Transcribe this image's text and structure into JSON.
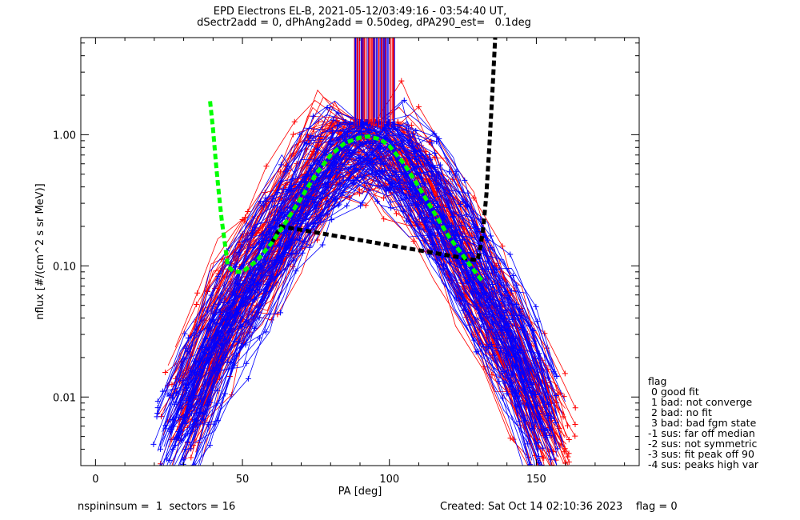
{
  "chart_data": {
    "type": "line",
    "title": "EPD Electrons EL-B, 2021-05-12/03:49:16 - 03:54:40 UT,",
    "subtitle": "dSectr2add = 0, dPhAng2add = 0.50deg, dPA290_est=   0.1deg",
    "xlabel": "PA [deg]",
    "ylabel": "nflux [#/(cm^2 s sr MeV)]",
    "xlim": [
      -5,
      185
    ],
    "ylim": [
      0.003,
      5.5
    ],
    "yscale": "log",
    "x_ticks": [
      0,
      50,
      100,
      150
    ],
    "y_ticks": [
      0.01,
      0.1,
      1.0
    ],
    "y_tick_labels": [
      "0.01",
      "0.10",
      "1.00"
    ],
    "colors": {
      "series_a": "#ff0000",
      "series_b": "#0000ff",
      "fit_low": "#00ff00",
      "fit_high": "#000000"
    },
    "series": [
      {
        "color": "#ff0000",
        "x": [
          30,
          45,
          63,
          80,
          92,
          99,
          118,
          133,
          148,
          155
        ],
        "y": [
          0.008,
          0.05,
          0.2,
          0.8,
          0.95,
          0.9,
          0.25,
          0.05,
          0.012,
          0.005
        ]
      },
      {
        "color": "#0000ff",
        "x": [
          27,
          42,
          60,
          80,
          92,
          99,
          115,
          130,
          145,
          152
        ],
        "y": [
          0.005,
          0.03,
          0.15,
          0.7,
          0.9,
          0.95,
          0.3,
          0.08,
          0.02,
          0.006
        ]
      }
    ],
    "fit_curve_low": {
      "color": "#00ff00",
      "style": "dashed",
      "x": [
        39,
        40,
        41,
        42,
        43,
        44,
        45,
        47,
        50,
        55,
        60,
        65,
        70,
        75,
        80,
        85,
        90,
        93,
        97,
        100,
        105,
        110,
        115,
        120,
        125,
        130,
        132
      ],
      "y": [
        1.8,
        1.1,
        0.6,
        0.35,
        0.22,
        0.15,
        0.1,
        0.09,
        0.09,
        0.11,
        0.15,
        0.22,
        0.33,
        0.5,
        0.7,
        0.87,
        0.95,
        0.97,
        0.92,
        0.82,
        0.6,
        0.4,
        0.26,
        0.17,
        0.12,
        0.085,
        0.075
      ]
    },
    "fit_curve_high": {
      "color": "#000000",
      "style": "dashed",
      "x": [
        60,
        63,
        130,
        131,
        132,
        133,
        134,
        135,
        136
      ],
      "y": [
        0.15,
        0.2,
        0.11,
        0.14,
        0.2,
        0.35,
        0.8,
        2.0,
        5.5
      ]
    },
    "spikes": {
      "x_range": [
        85,
        105
      ]
    },
    "legend": {
      "placement": "right",
      "title": "flag",
      "items": [
        " 0 good fit",
        " 1 bad: not converge",
        " 2 bad: no fit",
        " 3 bad: bad fgm state",
        "-1 sus: far off median",
        "-2 sus: not symmetric",
        "-3 sus: fit peak off 90",
        "-4 sus: peaks high var"
      ]
    }
  },
  "footer": {
    "left": "nspininsum =  1  sectors = 16",
    "right": "Created: Sat Oct 14 02:10:36 2023    flag = 0"
  }
}
